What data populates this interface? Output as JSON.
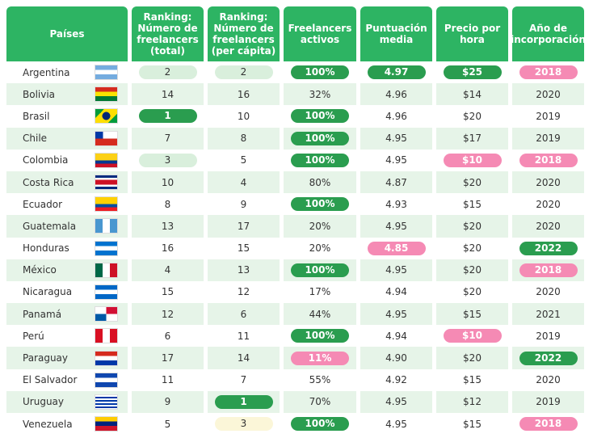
{
  "table": {
    "header": [
      "Países",
      "Ranking: Número de freelancers (total)",
      "Ranking: Número de freelancers (per cápita)",
      "Freelancers activos",
      "Puntuación media",
      "Precio por hora",
      "Año de incorporación"
    ],
    "rows": [
      [
        "Argentina",
        "2",
        "2",
        "100%",
        "4.97",
        "$25",
        "2018"
      ],
      [
        "Bolivia",
        "14",
        "16",
        "32%",
        "4.96",
        "$14",
        "2020"
      ],
      [
        "Brasil",
        "1",
        "10",
        "100%",
        "4.96",
        "$20",
        "2019"
      ],
      [
        "Chile",
        "7",
        "8",
        "100%",
        "4.95",
        "$17",
        "2019"
      ],
      [
        "Colombia",
        "3",
        "5",
        "100%",
        "4.95",
        "$10",
        "2018"
      ],
      [
        "Costa Rica",
        "10",
        "4",
        "80%",
        "4.87",
        "$20",
        "2020"
      ],
      [
        "Ecuador",
        "8",
        "9",
        "100%",
        "4.93",
        "$15",
        "2020"
      ],
      [
        "Guatemala",
        "13",
        "17",
        "20%",
        "4.95",
        "$20",
        "2020"
      ],
      [
        "Honduras",
        "16",
        "15",
        "20%",
        "4.85",
        "$20",
        "2022"
      ],
      [
        "México",
        "4",
        "13",
        "100%",
        "4.95",
        "$20",
        "2018"
      ],
      [
        "Nicaragua",
        "15",
        "12",
        "17%",
        "4.94",
        "$20",
        "2020"
      ],
      [
        "Panamá",
        "12",
        "6",
        "44%",
        "4.95",
        "$15",
        "2021"
      ],
      [
        "Perú",
        "6",
        "11",
        "100%",
        "4.94",
        "$10",
        "2019"
      ],
      [
        "Paraguay",
        "17",
        "14",
        "11%",
        "4.90",
        "$20",
        "2022"
      ],
      [
        "El Salvador",
        "11",
        "7",
        "55%",
        "4.92",
        "$15",
        "2020"
      ],
      [
        "Uruguay",
        "9",
        "1",
        "70%",
        "4.95",
        "$12",
        "2019"
      ],
      [
        "Venezuela",
        "5",
        "3",
        "100%",
        "4.95",
        "$15",
        "2018"
      ]
    ]
  }
}
